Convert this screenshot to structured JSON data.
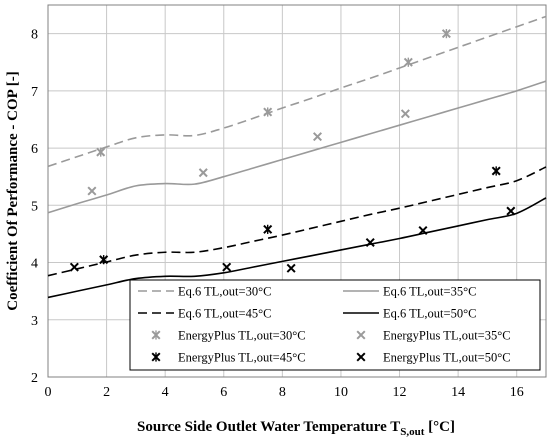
{
  "chart_data": {
    "type": "line",
    "title": "",
    "xlabel": "Source Side Outlet Water Temperature T",
    "xlabel_sub": "S,out",
    "xlabel_unit": " [°C]",
    "ylabel": "Coefficient Of Performance - COP [-]",
    "xlim": [
      0,
      17
    ],
    "ylim": [
      2,
      8.5
    ],
    "x_ticks": [
      "0",
      "2",
      "4",
      "6",
      "8",
      "10",
      "12",
      "14",
      "16"
    ],
    "y_ticks": [
      "2",
      "3",
      "4",
      "5",
      "6",
      "7",
      "8"
    ],
    "grid": true,
    "legend_placement": "bottom-right",
    "line_series": [
      {
        "name": "Eq.6 TL,out=30°C",
        "color": "#9a9a9a",
        "dash": "dashed",
        "x": [
          0,
          1,
          2,
          3,
          4,
          5,
          6,
          7,
          8,
          9,
          10,
          11,
          12,
          13,
          14,
          15,
          16,
          17
        ],
        "y": [
          5.68,
          5.85,
          6.02,
          6.18,
          6.23,
          6.22,
          6.35,
          6.52,
          6.7,
          6.87,
          7.05,
          7.22,
          7.4,
          7.58,
          7.76,
          7.94,
          8.12,
          8.3
        ]
      },
      {
        "name": "Eq.6 TL,out=35°C",
        "color": "#9a9a9a",
        "dash": "solid",
        "x": [
          0,
          1,
          2,
          3,
          4,
          5,
          6,
          7,
          8,
          9,
          10,
          11,
          12,
          13,
          14,
          15,
          16,
          17
        ],
        "y": [
          4.87,
          5.03,
          5.18,
          5.34,
          5.38,
          5.37,
          5.5,
          5.65,
          5.8,
          5.95,
          6.1,
          6.25,
          6.4,
          6.55,
          6.7,
          6.85,
          7.0,
          7.17
        ]
      },
      {
        "name": "Eq.6 TL,out=45°C",
        "color": "#000000",
        "dash": "dashed",
        "x": [
          0,
          1,
          2,
          3,
          4,
          5,
          6,
          7,
          8,
          9,
          10,
          11,
          12,
          13,
          14,
          15,
          16,
          17
        ],
        "y": [
          3.77,
          3.89,
          4.01,
          4.13,
          4.18,
          4.18,
          4.26,
          4.37,
          4.48,
          4.6,
          4.72,
          4.84,
          4.95,
          5.07,
          5.19,
          5.31,
          5.43,
          5.67
        ]
      },
      {
        "name": "Eq.6 TL,out=50°C",
        "color": "#000000",
        "dash": "solid",
        "x": [
          0,
          1,
          2,
          3,
          4,
          5,
          6,
          7,
          8,
          9,
          10,
          11,
          12,
          13,
          14,
          15,
          16,
          17
        ],
        "y": [
          3.39,
          3.5,
          3.61,
          3.72,
          3.76,
          3.76,
          3.82,
          3.92,
          4.02,
          4.12,
          4.22,
          4.32,
          4.42,
          4.53,
          4.64,
          4.75,
          4.86,
          5.13
        ]
      }
    ],
    "scatter_series": [
      {
        "name": "EnergyPlus TL,out=30°C",
        "color": "#9a9a9a",
        "marker": "asterisk",
        "x": [
          1.8,
          7.5,
          12.3,
          13.6
        ],
        "y": [
          5.93,
          6.63,
          7.5,
          8.0
        ]
      },
      {
        "name": "EnergyPlus TL,out=35°C",
        "color": "#9a9a9a",
        "marker": "x",
        "x": [
          1.5,
          5.3,
          9.2,
          12.2
        ],
        "y": [
          5.25,
          5.57,
          6.2,
          6.6
        ]
      },
      {
        "name": "EnergyPlus TL,out=45°C",
        "color": "#000000",
        "marker": "asterisk",
        "x": [
          1.9,
          7.5,
          15.3
        ],
        "y": [
          4.05,
          4.58,
          5.6
        ]
      },
      {
        "name": "EnergyPlus TL,out=50°C",
        "color": "#000000",
        "marker": "x",
        "x": [
          0.9,
          6.1,
          8.3,
          11.0,
          12.8,
          15.8
        ],
        "y": [
          3.92,
          3.92,
          3.9,
          4.35,
          4.56,
          4.9
        ]
      }
    ]
  }
}
